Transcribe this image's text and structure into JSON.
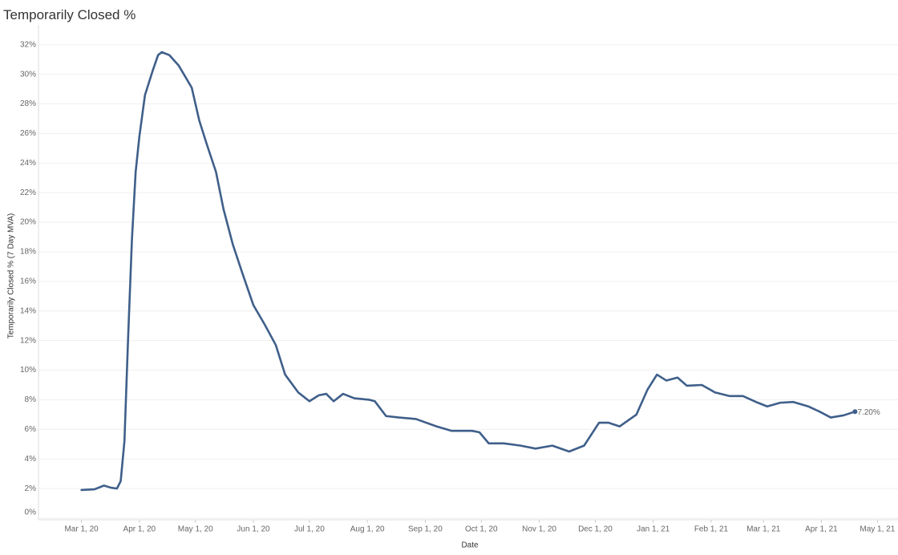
{
  "chart_data": {
    "type": "line",
    "title": "Temporarily Closed %",
    "x_label": "Date",
    "y_label": "Temporarily Closed % (7 Day MVA)",
    "x": [
      "2020-03-01",
      "2020-03-08",
      "2020-03-13",
      "2020-03-17",
      "2020-03-20",
      "2020-03-22",
      "2020-03-24",
      "2020-03-26",
      "2020-03-28",
      "2020-03-30",
      "2020-04-01",
      "2020-04-04",
      "2020-04-08",
      "2020-04-11",
      "2020-04-13",
      "2020-04-17",
      "2020-04-22",
      "2020-04-29",
      "2020-05-03",
      "2020-05-07",
      "2020-05-12",
      "2020-05-16",
      "2020-05-21",
      "2020-05-26",
      "2020-06-01",
      "2020-06-07",
      "2020-06-13",
      "2020-06-18",
      "2020-06-25",
      "2020-07-01",
      "2020-07-06",
      "2020-07-10",
      "2020-07-14",
      "2020-07-19",
      "2020-07-25",
      "2020-08-02",
      "2020-08-05",
      "2020-08-11",
      "2020-08-18",
      "2020-08-27",
      "2020-09-07",
      "2020-09-15",
      "2020-09-26",
      "2020-09-30",
      "2020-10-05",
      "2020-10-13",
      "2020-10-22",
      "2020-10-30",
      "2020-11-08",
      "2020-11-17",
      "2020-11-25",
      "2020-12-03",
      "2020-12-08",
      "2020-12-14",
      "2020-12-23",
      "2020-12-29",
      "2021-01-03",
      "2021-01-08",
      "2021-01-14",
      "2021-01-19",
      "2021-01-27",
      "2021-02-03",
      "2021-02-11",
      "2021-02-18",
      "2021-02-26",
      "2021-03-03",
      "2021-03-10",
      "2021-03-17",
      "2021-03-25",
      "2021-03-31",
      "2021-04-06",
      "2021-04-13",
      "2021-04-19"
    ],
    "series": [
      {
        "name": "Temporarily Closed %",
        "color": "#3f5f8a",
        "values": [
          1.9,
          1.95,
          2.2,
          2.05,
          2.0,
          2.5,
          5.2,
          12.3,
          18.8,
          23.4,
          25.8,
          28.6,
          30.2,
          31.3,
          31.5,
          31.3,
          30.6,
          29.1,
          26.9,
          25.3,
          23.4,
          20.9,
          18.5,
          16.6,
          14.4,
          13.1,
          11.7,
          9.7,
          8.5,
          7.9,
          8.3,
          8.4,
          7.9,
          8.4,
          8.1,
          8.0,
          7.9,
          6.9,
          6.8,
          6.7,
          6.2,
          5.9,
          5.9,
          5.8,
          5.05,
          5.05,
          4.9,
          4.7,
          4.9,
          4.5,
          4.9,
          6.45,
          6.45,
          6.2,
          7.0,
          8.7,
          9.7,
          9.3,
          9.5,
          8.95,
          9.0,
          8.5,
          8.25,
          8.25,
          7.8,
          7.55,
          7.8,
          7.85,
          7.55,
          7.2,
          6.8,
          6.95,
          7.2
        ],
        "value_labels": [
          null,
          null,
          null,
          null,
          null,
          null,
          null,
          null,
          null,
          null,
          null,
          null,
          null,
          null,
          null,
          null,
          null,
          null,
          null,
          null,
          null,
          null,
          null,
          null,
          null,
          null,
          null,
          null,
          null,
          null,
          null,
          null,
          null,
          null,
          null,
          null,
          null,
          null,
          null,
          null,
          null,
          null,
          null,
          null,
          null,
          null,
          null,
          null,
          null,
          null,
          null,
          null,
          null,
          null,
          null,
          null,
          null,
          null,
          null,
          null,
          null,
          null,
          null,
          null,
          null,
          null,
          null,
          null,
          null,
          null,
          null,
          null,
          "7.20%"
        ]
      }
    ],
    "xlim": [
      "2020-02-07",
      "2021-05-12"
    ],
    "xticks": [
      {
        "value": "2020-03-01",
        "label": "Mar 1, 20"
      },
      {
        "value": "2020-04-01",
        "label": "Apr 1, 20"
      },
      {
        "value": "2020-05-01",
        "label": "May 1, 20"
      },
      {
        "value": "2020-06-01",
        "label": "Jun 1, 20"
      },
      {
        "value": "2020-07-01",
        "label": "Jul 1, 20"
      },
      {
        "value": "2020-08-01",
        "label": "Aug 1, 20"
      },
      {
        "value": "2020-09-01",
        "label": "Sep 1, 20"
      },
      {
        "value": "2020-10-01",
        "label": "Oct 1, 20"
      },
      {
        "value": "2020-11-01",
        "label": "Nov 1, 20"
      },
      {
        "value": "2020-12-01",
        "label": "Dec 1, 20"
      },
      {
        "value": "2021-01-01",
        "label": "Jan 1, 21"
      },
      {
        "value": "2021-02-01",
        "label": "Feb 1, 21"
      },
      {
        "value": "2021-03-01",
        "label": "Mar 1, 21"
      },
      {
        "value": "2021-04-01",
        "label": "Apr 1, 21"
      },
      {
        "value": "2021-05-01",
        "label": "May 1, 21"
      }
    ],
    "ylim": [
      0,
      32.8
    ],
    "yticks": [
      {
        "value": 0,
        "label": "0%"
      },
      {
        "value": 2,
        "label": "2%"
      },
      {
        "value": 4,
        "label": "4%"
      },
      {
        "value": 6,
        "label": "6%"
      },
      {
        "value": 8,
        "label": "8%"
      },
      {
        "value": 10,
        "label": "10%"
      },
      {
        "value": 12,
        "label": "12%"
      },
      {
        "value": 14,
        "label": "14%"
      },
      {
        "value": 16,
        "label": "16%"
      },
      {
        "value": 18,
        "label": "18%"
      },
      {
        "value": 20,
        "label": "20%"
      },
      {
        "value": 22,
        "label": "22%"
      },
      {
        "value": 24,
        "label": "24%"
      },
      {
        "value": 26,
        "label": "26%"
      },
      {
        "value": 28,
        "label": "28%"
      },
      {
        "value": 30,
        "label": "30%"
      },
      {
        "value": 32,
        "label": "32%"
      }
    ],
    "grid": true
  }
}
